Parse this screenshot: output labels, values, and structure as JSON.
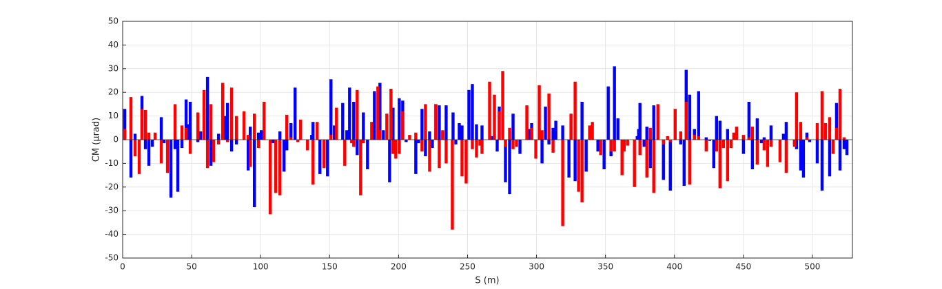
{
  "chart_data": {
    "type": "bar",
    "x_label": "S (m)",
    "y_label": "CM (μrad)",
    "xlim": [
      0,
      529
    ],
    "ylim": [
      -50,
      50
    ],
    "xticks": [
      0,
      50,
      100,
      150,
      200,
      250,
      300,
      350,
      400,
      450,
      500
    ],
    "yticks": [
      -50,
      -40,
      -30,
      -20,
      -10,
      0,
      10,
      20,
      30,
      40,
      50
    ],
    "grid": true,
    "series": [
      {
        "color": "#0000ff",
        "x": [
          1.5,
          6,
          9,
          14,
          16.5,
          19,
          21.5,
          28,
          30,
          35,
          38,
          40,
          43,
          46,
          47.5,
          49,
          54.5,
          56.5,
          59,
          61.5,
          64,
          69.5,
          74,
          76,
          79,
          82.5,
          91,
          92.5,
          95.5,
          98.5,
          100.5,
          109,
          114,
          117,
          119,
          122,
          125,
          137,
          138,
          143,
          146,
          148.5,
          151,
          153.5,
          159.5,
          162.5,
          164.5,
          167.5,
          170,
          174.5,
          177.5,
          182.5,
          186.5,
          189,
          193.5,
          196,
          200.5,
          203,
          205.5,
          212.5,
          214.5,
          217,
          219.5,
          222.5,
          224.5,
          227,
          229.5,
          232,
          234.5,
          239.5,
          241.5,
          244,
          246,
          251,
          253.5,
          256.5,
          260.5,
          268,
          271.5,
          273,
          277.5,
          280.5,
          283,
          288,
          295,
          296.5,
          304,
          306.5,
          309,
          312,
          314,
          319,
          323.5,
          328,
          333,
          336,
          344.5,
          349,
          352,
          354,
          356.5,
          359,
          363.5,
          373,
          374,
          375,
          378,
          380,
          382.5,
          385,
          392,
          397,
          404.5,
          407,
          408.5,
          411,
          414.5,
          417.5,
          423,
          425.5,
          428.5,
          430.5,
          433,
          438.5,
          450,
          454,
          456.5,
          460,
          463,
          465,
          470,
          479,
          481,
          487,
          488.5,
          491.5,
          493.5,
          496,
          498,
          503.5,
          507,
          512.5,
          517.5,
          520,
          523,
          525
        ],
        "values": [
          13,
          -16,
          2.5,
          18.5,
          -4,
          -11,
          -3,
          9.5,
          -1.5,
          -24.5,
          -4,
          -22,
          -3.5,
          17,
          6.5,
          16,
          -1,
          3.5,
          13,
          26.5,
          -11,
          2.5,
          10,
          15.5,
          -5,
          -2,
          -13,
          5.5,
          -28.5,
          3,
          4,
          -1.5,
          3.5,
          -13.5,
          -4.5,
          7,
          22,
          2,
          7.5,
          -14.5,
          -10.5,
          -15.5,
          25.5,
          6,
          15.5,
          4,
          22,
          16,
          -6.5,
          11.5,
          -12.5,
          20.5,
          24,
          4,
          -18,
          13.5,
          17.5,
          16.5,
          -1,
          -14.5,
          -1.5,
          13,
          -7,
          3.5,
          -3.5,
          15,
          14.5,
          3.5,
          14.5,
          11.5,
          -2,
          7,
          6,
          21,
          23.5,
          6.5,
          6,
          1.5,
          -5,
          14,
          -18,
          -23,
          11,
          -6,
          4.5,
          7,
          -10,
          14,
          -2,
          5,
          8,
          6,
          -16,
          -17.5,
          16,
          -13.5,
          -5,
          -12.5,
          22.5,
          -7,
          31,
          9,
          -4,
          1.5,
          4.5,
          15.5,
          -3,
          5.5,
          -12,
          14.5,
          -17,
          -21.5,
          -2,
          -19.5,
          29.5,
          19,
          4.5,
          20.5,
          1,
          -0.5,
          -12,
          10,
          8,
          4.5,
          -6,
          16,
          -12.5,
          9,
          -1.5,
          1,
          6,
          2.5,
          7.5,
          -2,
          -4,
          -13,
          -16,
          3,
          -1,
          -10,
          -21.5,
          -15.5,
          15.5,
          -13,
          -4,
          -6.5
        ]
      },
      {
        "color": "#ff0000",
        "x": [
          1.5,
          6,
          9,
          12,
          14,
          16.5,
          19,
          23.5,
          28,
          32.5,
          38,
          43,
          46,
          49,
          54.5,
          59,
          61.5,
          64,
          66,
          69.5,
          72.5,
          76,
          79,
          82.5,
          88,
          91,
          92.5,
          95.5,
          98.5,
          102.5,
          107,
          111,
          114,
          119,
          122,
          127,
          129,
          134,
          138,
          141,
          146,
          151,
          155,
          161,
          166,
          167.5,
          170,
          172.5,
          174.5,
          180.5,
          185,
          186.5,
          191.5,
          194.5,
          196,
          198,
          200.5,
          203,
          208,
          212.5,
          217,
          219.5,
          222.5,
          227,
          229.5,
          232,
          234.5,
          239,
          246,
          249,
          253.5,
          256.5,
          259,
          260.5,
          266,
          269.5,
          273,
          275.5,
          277.5,
          280.5,
          283,
          285.5,
          293,
          296.5,
          299.5,
          302,
          304,
          309,
          312,
          319,
          325,
          328,
          330.5,
          333,
          338.5,
          340.5,
          346.5,
          354,
          356.5,
          362,
          363.5,
          366,
          371,
          375,
          380,
          382.5,
          385,
          388,
          392,
          395,
          397,
          400.5,
          404.5,
          408.5,
          411,
          414.5,
          417.5,
          423,
          430.5,
          433,
          435.5,
          438.5,
          441,
          443,
          445,
          450,
          454,
          456.5,
          460,
          465,
          467.5,
          470,
          476.5,
          481,
          487,
          488.5,
          491.5,
          496,
          503.5,
          507,
          509.5,
          512.5,
          515,
          517.5,
          520,
          523
        ],
        "values": [
          4.5,
          18,
          -7,
          -14.5,
          13,
          12.5,
          3,
          3,
          -10,
          -14,
          15,
          6,
          5,
          -6,
          11.5,
          21,
          -12,
          15,
          -9.5,
          -2,
          24,
          -1,
          22,
          10,
          12,
          2,
          -11.5,
          11,
          -3.5,
          16,
          -31.5,
          -22.5,
          -23.5,
          10.5,
          1,
          -1,
          8.5,
          -4.5,
          -19,
          7.5,
          -12,
          2,
          13.5,
          -11,
          -1.5,
          -3,
          21,
          -23.5,
          -1.5,
          7.5,
          22.5,
          4,
          11,
          21.5,
          -6,
          -8,
          -6,
          12,
          2,
          3,
          -5,
          15,
          -13.5,
          15,
          -12,
          4,
          -10,
          -38,
          -15.5,
          -18.5,
          -4,
          -7.5,
          -2.5,
          -6,
          24.5,
          19,
          12,
          29,
          -3,
          5,
          -4,
          -3,
          14.5,
          5,
          -8,
          23,
          4,
          19.5,
          -5.5,
          -36.5,
          11,
          24.5,
          -22,
          -26.5,
          6,
          7.5,
          -6.5,
          -5,
          -5,
          -15,
          -5,
          -2.5,
          -20,
          -6.5,
          -16,
          5,
          -22.5,
          15,
          -2,
          1.5,
          -1,
          13,
          3.5,
          16,
          -19,
          2,
          1.5,
          -5,
          -5,
          -20.5,
          -3.5,
          -17.5,
          -3.5,
          3,
          5.5,
          2,
          1,
          5.5,
          -10.5,
          -4.5,
          -11.5,
          -3,
          -9.5,
          -14,
          -3,
          20,
          7.5,
          1,
          7,
          20.5,
          7,
          9.5,
          -6,
          5,
          21.5,
          1
        ]
      }
    ]
  }
}
